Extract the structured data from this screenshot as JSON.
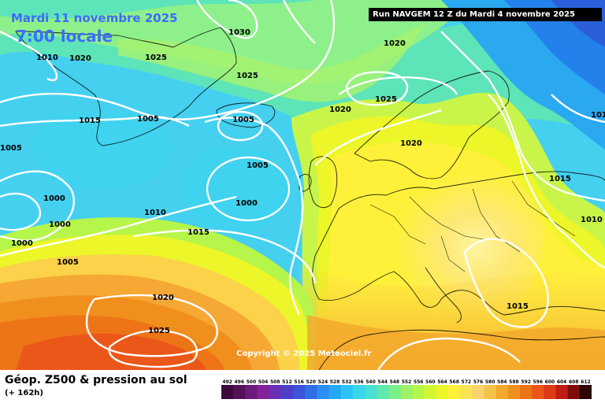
{
  "header": {
    "date": "Mardi 11 novembre 2025",
    "time": "7:00 locale",
    "run": "Run NAVGEM 12 Z du Mardi 4 novembre 2025"
  },
  "copyright": "Copyright © 2025 Meteociel.fr",
  "footer": {
    "title": "Géop. Z500 & pression au sol",
    "subtitle": "(+ 162h)"
  },
  "scale": {
    "labels": [
      "492",
      "496",
      "500",
      "504",
      "508",
      "512",
      "516",
      "520",
      "524",
      "528",
      "532",
      "536",
      "540",
      "544",
      "548",
      "552",
      "556",
      "560",
      "564",
      "568",
      "572",
      "576",
      "580",
      "584",
      "588",
      "592",
      "596",
      "600",
      "604",
      "608",
      "612"
    ],
    "colors": [
      "#3c0a3c",
      "#55105a",
      "#6e1a7d",
      "#82229a",
      "#6a2fb5",
      "#4d3ec8",
      "#3a55d8",
      "#2f6fe6",
      "#2b8ef0",
      "#27a8f5",
      "#2ec3f6",
      "#3ad6ee",
      "#4ae0d2",
      "#5ee8b0",
      "#7aee8a",
      "#99f26a",
      "#b6f54a",
      "#d2f732",
      "#ecf628",
      "#fff13a",
      "#fbe356",
      "#f8d36b",
      "#f5c24a",
      "#f3a92b",
      "#f18f1d",
      "#ee7418",
      "#ea5718",
      "#dd3a18",
      "#bd1e10",
      "#7e0d0b",
      "#2a0606"
    ]
  },
  "isobars": [
    {
      "value": "1030"
    },
    {
      "value": "1010"
    },
    {
      "value": "1020"
    },
    {
      "value": "1025"
    },
    {
      "value": "1025"
    },
    {
      "value": "1020"
    },
    {
      "value": "1025"
    },
    {
      "value": "1020"
    },
    {
      "value": "1015"
    },
    {
      "value": "1005"
    },
    {
      "value": "1005"
    },
    {
      "value": "1005"
    },
    {
      "value": "1020"
    },
    {
      "value": "1005"
    },
    {
      "value": "1000"
    },
    {
      "value": "1000"
    },
    {
      "value": "1010"
    },
    {
      "value": "1015"
    },
    {
      "value": "1000"
    },
    {
      "value": "1000"
    },
    {
      "value": "1005"
    },
    {
      "value": "1015"
    },
    {
      "value": "1010"
    },
    {
      "value": "1015"
    },
    {
      "value": "1020"
    },
    {
      "value": "1025"
    },
    {
      "value": "101"
    }
  ]
}
